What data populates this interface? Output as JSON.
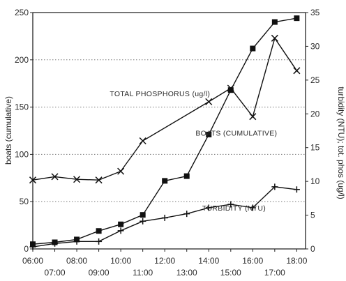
{
  "chart_data": {
    "type": "line",
    "y_left_label": "boats (cumulative)",
    "y_right_label": "turbidity (NTU); tot. phos (ug/l)",
    "x_range": [
      6,
      18.4
    ],
    "y_left_range": [
      0,
      250
    ],
    "y_right_range": [
      0,
      35
    ],
    "x_ticks_upper": [
      {
        "x": 6,
        "label": "06:00"
      },
      {
        "x": 8,
        "label": "08:00"
      },
      {
        "x": 10,
        "label": "10:00"
      },
      {
        "x": 12,
        "label": "12:00"
      },
      {
        "x": 14,
        "label": "14:00"
      },
      {
        "x": 16,
        "label": "16:00"
      },
      {
        "x": 18,
        "label": "18:00"
      }
    ],
    "x_ticks_lower": [
      {
        "x": 7,
        "label": "07:00"
      },
      {
        "x": 9,
        "label": "09:00"
      },
      {
        "x": 11,
        "label": "11:00"
      },
      {
        "x": 13,
        "label": "13:00"
      },
      {
        "x": 15,
        "label": "15:00"
      },
      {
        "x": 17,
        "label": "17:00"
      }
    ],
    "y_left_ticks": [
      0,
      50,
      100,
      150,
      200,
      250
    ],
    "y_right_ticks": [
      0,
      5,
      10,
      15,
      20,
      25,
      30,
      35
    ],
    "y_right_tick_labels": [
      "0",
      "5",
      "10",
      "15",
      "20",
      "25",
      "30",
      "35"
    ],
    "gridlines": "dotted horizontal at left-axis ticks",
    "series": [
      {
        "name": "BOATS (CUMULATIVE)",
        "axis": "left",
        "marker": "square",
        "label_at": [
          13.4,
          120
        ],
        "points": [
          [
            6,
            5
          ],
          [
            7,
            7
          ],
          [
            8,
            10
          ],
          [
            9,
            19
          ],
          [
            10,
            26
          ],
          [
            11,
            36
          ],
          [
            12,
            72
          ],
          [
            13,
            77
          ],
          [
            14,
            121
          ],
          [
            15,
            168
          ],
          [
            16,
            212
          ],
          [
            17,
            240
          ],
          [
            18,
            244
          ]
        ]
      },
      {
        "name": "TOTAL PHOSPHORUS (ug/l)",
        "axis": "right",
        "marker": "x",
        "label_at": [
          9.5,
          22.6
        ],
        "points": [
          [
            6,
            10.2
          ],
          [
            7,
            10.7
          ],
          [
            8,
            10.3
          ],
          [
            9,
            10.2
          ],
          [
            10,
            11.5
          ],
          [
            11,
            16.0
          ],
          [
            14,
            21.8
          ],
          [
            15,
            23.8
          ],
          [
            16,
            19.6
          ],
          [
            17,
            31.2
          ],
          [
            18,
            26.4
          ]
        ]
      },
      {
        "name": "TURBIDITY (NTU)",
        "axis": "right",
        "marker": "plus",
        "label_at": [
          13.7,
          5.7
        ],
        "points": [
          [
            6,
            0.3
          ],
          [
            7,
            0.8
          ],
          [
            8,
            1.1
          ],
          [
            9,
            1.1
          ],
          [
            10,
            2.7
          ],
          [
            11,
            4.1
          ],
          [
            12,
            4.6
          ],
          [
            13,
            5.2
          ],
          [
            14,
            6.1
          ],
          [
            15,
            6.6
          ],
          [
            16,
            6.1
          ],
          [
            17,
            9.2
          ],
          [
            18,
            8.8
          ]
        ]
      }
    ]
  }
}
